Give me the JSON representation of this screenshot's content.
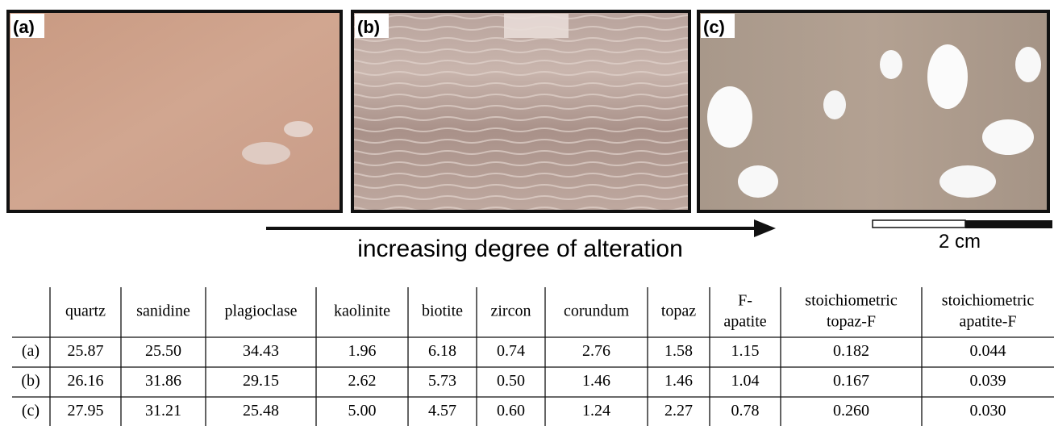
{
  "panels": [
    {
      "label": "(a)"
    },
    {
      "label": "(b)"
    },
    {
      "label": "(c)"
    }
  ],
  "arrow_label": "increasing degree of alteration",
  "scale_label": "2 cm",
  "table": {
    "columns": [
      [
        "quartz"
      ],
      [
        "sanidine"
      ],
      [
        "plagioclase"
      ],
      [
        "kaolinite"
      ],
      [
        "biotite"
      ],
      [
        "zircon"
      ],
      [
        "corundum"
      ],
      [
        "topaz"
      ],
      [
        "F-",
        "apatite"
      ],
      [
        "stoichiometric",
        "topaz-F"
      ],
      [
        "stoichiometric",
        "apatite-F"
      ]
    ],
    "rows": [
      {
        "label": "(a)",
        "values": [
          "25.87",
          "25.50",
          "34.43",
          "1.96",
          "6.18",
          "0.74",
          "2.76",
          "1.58",
          "1.15",
          "0.182",
          "0.044"
        ]
      },
      {
        "label": "(b)",
        "values": [
          "26.16",
          "31.86",
          "29.15",
          "2.62",
          "5.73",
          "0.50",
          "1.46",
          "1.46",
          "1.04",
          "0.167",
          "0.039"
        ]
      },
      {
        "label": "(c)",
        "values": [
          "27.95",
          "31.21",
          "25.48",
          "5.00",
          "4.57",
          "0.60",
          "1.24",
          "2.27",
          "0.78",
          "0.260",
          "0.030"
        ]
      }
    ]
  }
}
